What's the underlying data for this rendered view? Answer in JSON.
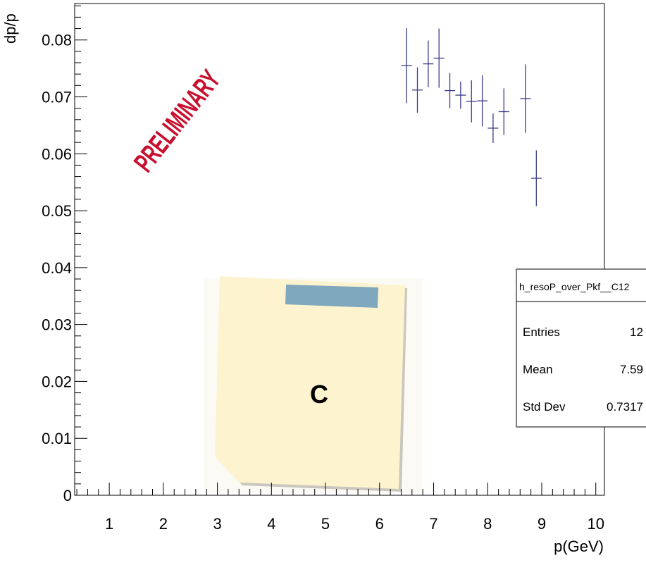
{
  "chart_data": {
    "type": "errorbar",
    "y_label": "dp/p",
    "x_label": "p(GeV)",
    "x": [
      6.5,
      6.7,
      6.9,
      7.1,
      7.3,
      7.5,
      7.7,
      7.9,
      8.1,
      8.3,
      8.7,
      8.9
    ],
    "values": [
      0.0755,
      0.0712,
      0.0758,
      0.0768,
      0.0711,
      0.0703,
      0.0692,
      0.0693,
      0.0645,
      0.0674,
      0.0697,
      0.0557
    ],
    "errors": [
      0.0066,
      0.004,
      0.0041,
      0.0052,
      0.0031,
      0.0024,
      0.0037,
      0.0045,
      0.0026,
      0.0041,
      0.006,
      0.0049
    ],
    "color": "#3a3a8c",
    "xlim": [
      0.36,
      10.16
    ],
    "xticks": [
      1,
      2,
      3,
      4,
      5,
      6,
      7,
      8,
      9,
      10
    ],
    "ylim": [
      0,
      0.0864
    ],
    "yticks": [
      0,
      0.01,
      0.02,
      0.03,
      0.04,
      0.05,
      0.06,
      0.07,
      0.08
    ],
    "stats": {
      "title": "h_resoP_over_Pkf__C12",
      "rows": [
        [
          "Entries",
          "12"
        ],
        [
          "Mean",
          "7.59"
        ],
        [
          "Std Dev",
          "0.7317"
        ]
      ]
    },
    "watermark": "PRELIMINARY",
    "note": "C"
  }
}
